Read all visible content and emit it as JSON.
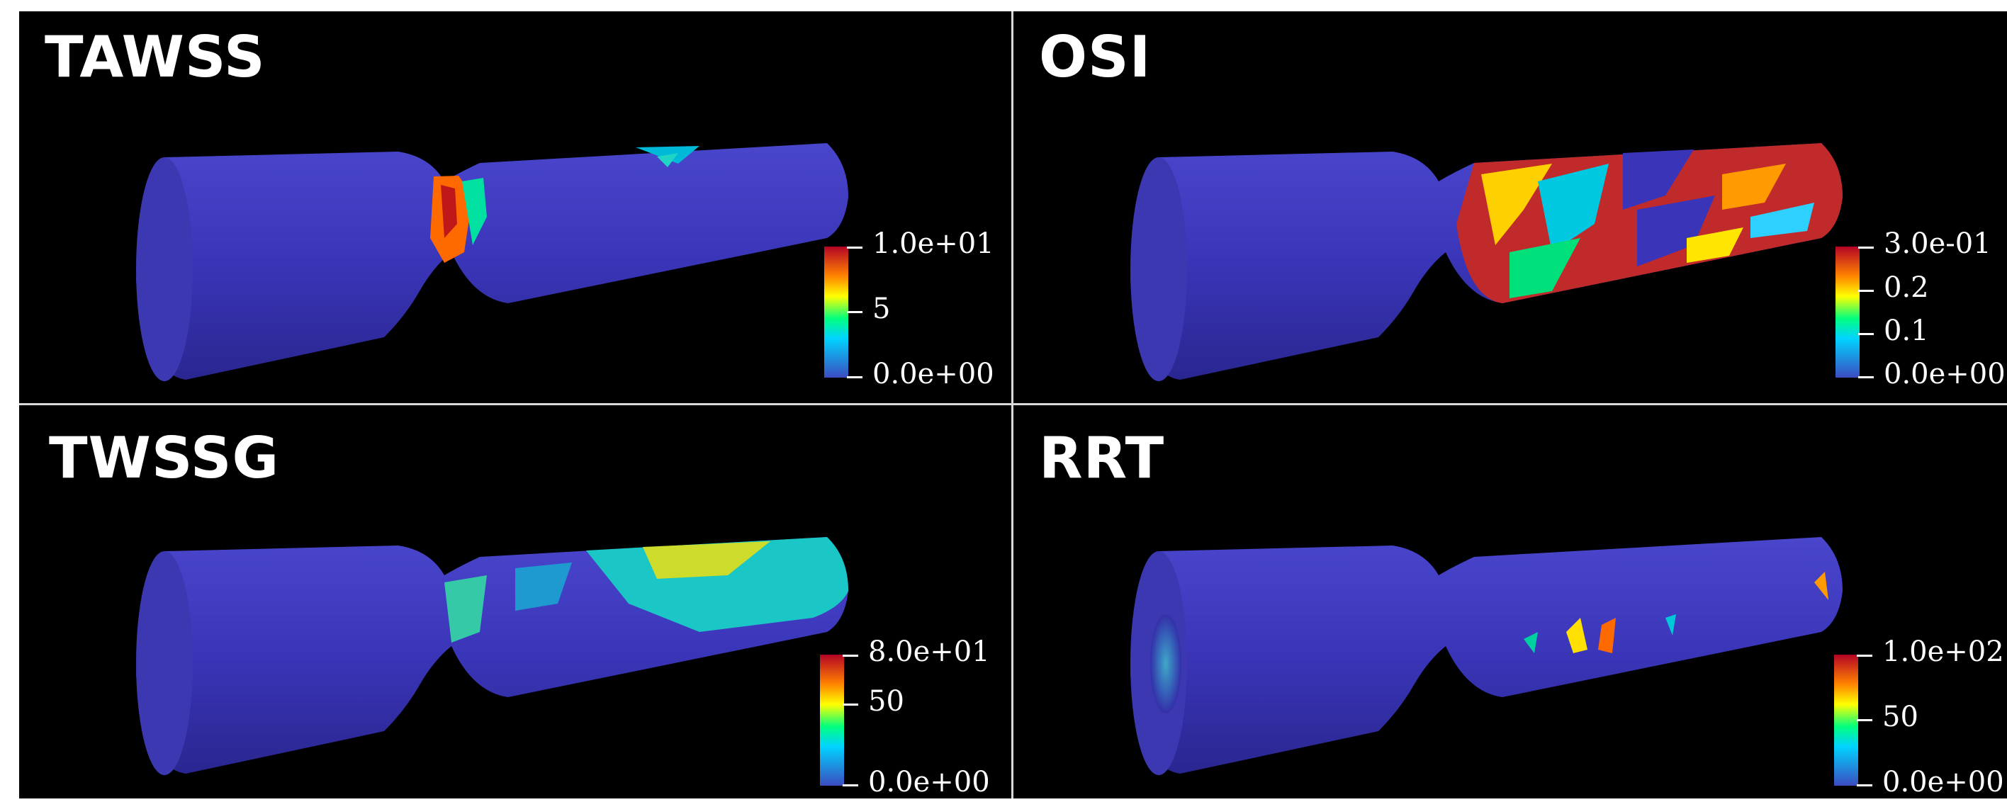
{
  "panels": [
    {
      "title": "TAWSS",
      "colorbar": {
        "max_label": "1.0e+01",
        "mid_labels": [
          "5"
        ],
        "min_label": "0.0e+00"
      }
    },
    {
      "title": "OSI",
      "colorbar": {
        "max_label": "3.0e-01",
        "mid_labels": [
          "0.2",
          "0.1"
        ],
        "min_label": "0.0e+00"
      }
    },
    {
      "title": "TWSSG",
      "colorbar": {
        "max_label": "8.0e+01",
        "mid_labels": [
          "50"
        ],
        "min_label": "0.0e+00"
      }
    },
    {
      "title": "RRT",
      "colorbar": {
        "max_label": "1.0e+02",
        "mid_labels": [
          "50"
        ],
        "min_label": "0.0e+00"
      }
    }
  ],
  "colors": {
    "background": "#000000",
    "vessel_base": "#3a35b8",
    "colormap": [
      "#3b4cc0",
      "#00d4ff",
      "#00ff7f",
      "#ffff00",
      "#ff8000",
      "#b40426"
    ]
  }
}
